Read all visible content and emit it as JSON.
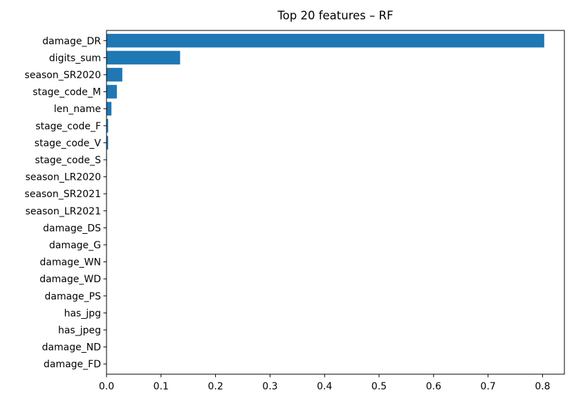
{
  "chart_data": {
    "type": "bar",
    "orientation": "horizontal",
    "title": "Top 20 features – RF",
    "xlabel": "",
    "ylabel": "",
    "xlim": [
      0,
      0.84
    ],
    "x_ticks": [
      0.0,
      0.1,
      0.2,
      0.3,
      0.4,
      0.5,
      0.6,
      0.7,
      0.8
    ],
    "x_tick_labels": [
      "0.0",
      "0.1",
      "0.2",
      "0.3",
      "0.4",
      "0.5",
      "0.6",
      "0.7",
      "0.8"
    ],
    "grid": false,
    "bar_color": "#1f77b4",
    "categories": [
      "damage_DR",
      "digits_sum",
      "season_SR2020",
      "stage_code_M",
      "len_name",
      "stage_code_F",
      "stage_code_V",
      "stage_code_S",
      "season_LR2020",
      "season_SR2021",
      "season_LR2021",
      "damage_DS",
      "damage_G",
      "damage_WN",
      "damage_WD",
      "damage_PS",
      "has_jpg",
      "has_jpeg",
      "damage_ND",
      "damage_FD"
    ],
    "values": [
      0.803,
      0.135,
      0.029,
      0.019,
      0.009,
      0.003,
      0.003,
      0.0008,
      0.0005,
      0.0004,
      0.0003,
      0.0002,
      0.0002,
      0.0001,
      0.0001,
      0.0001,
      0.0,
      0.0,
      0.0,
      0.0
    ]
  }
}
